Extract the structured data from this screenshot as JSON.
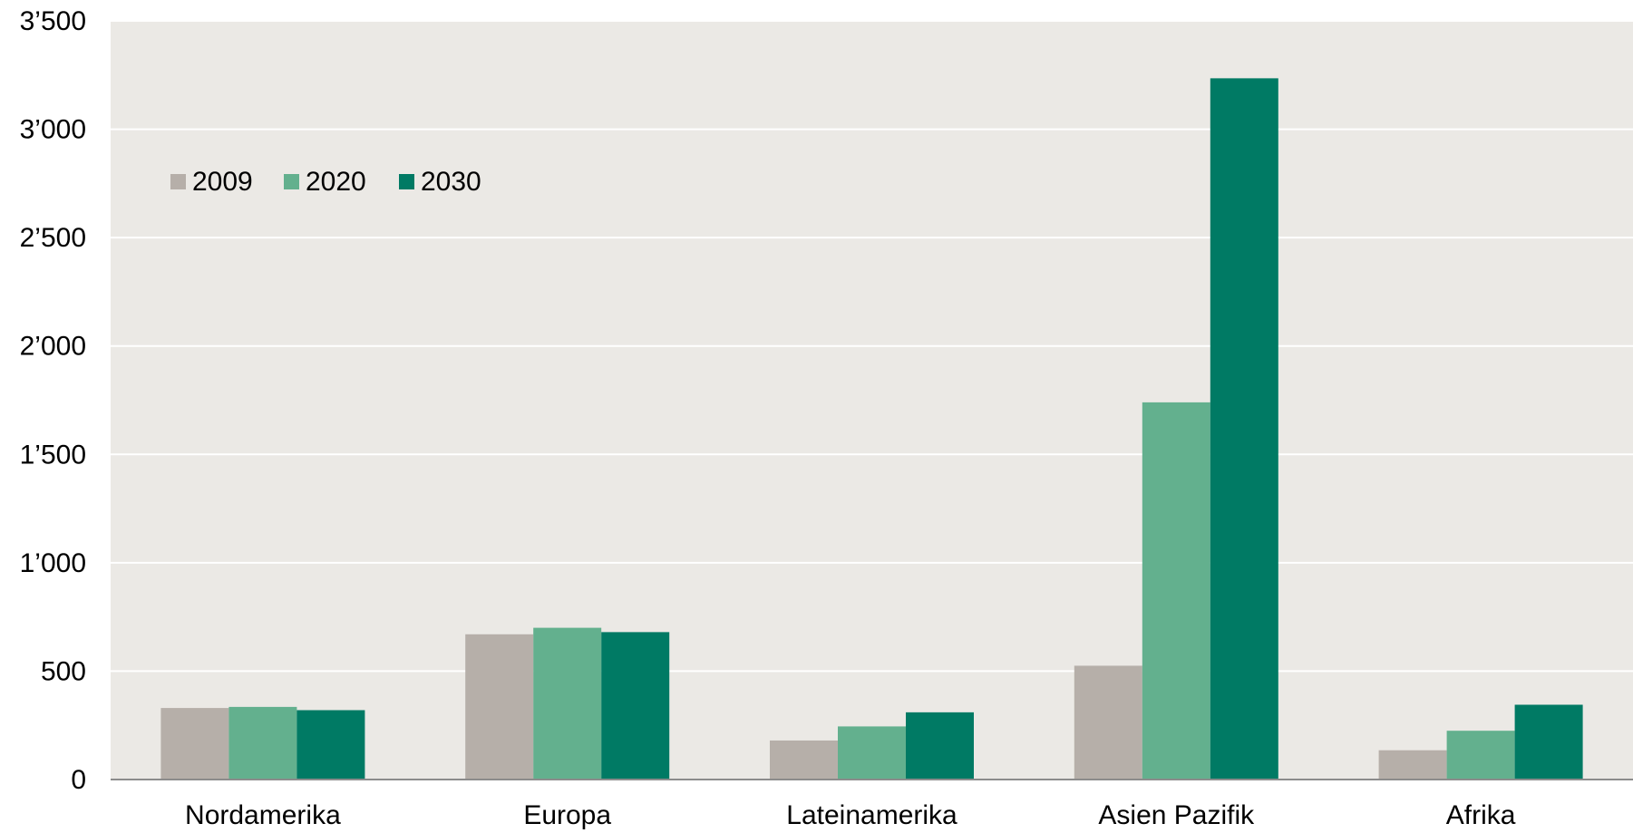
{
  "chart_data": {
    "type": "bar",
    "title": "",
    "xlabel": "",
    "ylabel": "",
    "ylim": [
      0,
      3500
    ],
    "grid": true,
    "legend_position": "top-left",
    "yticks": [
      0,
      500,
      1000,
      1500,
      2000,
      2500,
      3000,
      3500
    ],
    "ytick_labels": [
      "0",
      "500",
      "1’000",
      "1’500",
      "2’000",
      "2’500",
      "3’000",
      "3’500"
    ],
    "categories": [
      "Nordamerika",
      "Europa",
      "Lateinamerika",
      "Asien Pazifik",
      "Afrika"
    ],
    "series": [
      {
        "name": "2009",
        "color": "#b6afa9",
        "values": [
          330,
          670,
          180,
          525,
          135
        ]
      },
      {
        "name": "2020",
        "color": "#63b08e",
        "values": [
          335,
          700,
          245,
          1740,
          225
        ]
      },
      {
        "name": "2030",
        "color": "#007a64",
        "values": [
          320,
          680,
          310,
          3235,
          345
        ]
      }
    ],
    "colors": {
      "plot_background": "#ebe9e5",
      "gridline": "#ffffff",
      "baseline": "#8c8c8c"
    }
  }
}
